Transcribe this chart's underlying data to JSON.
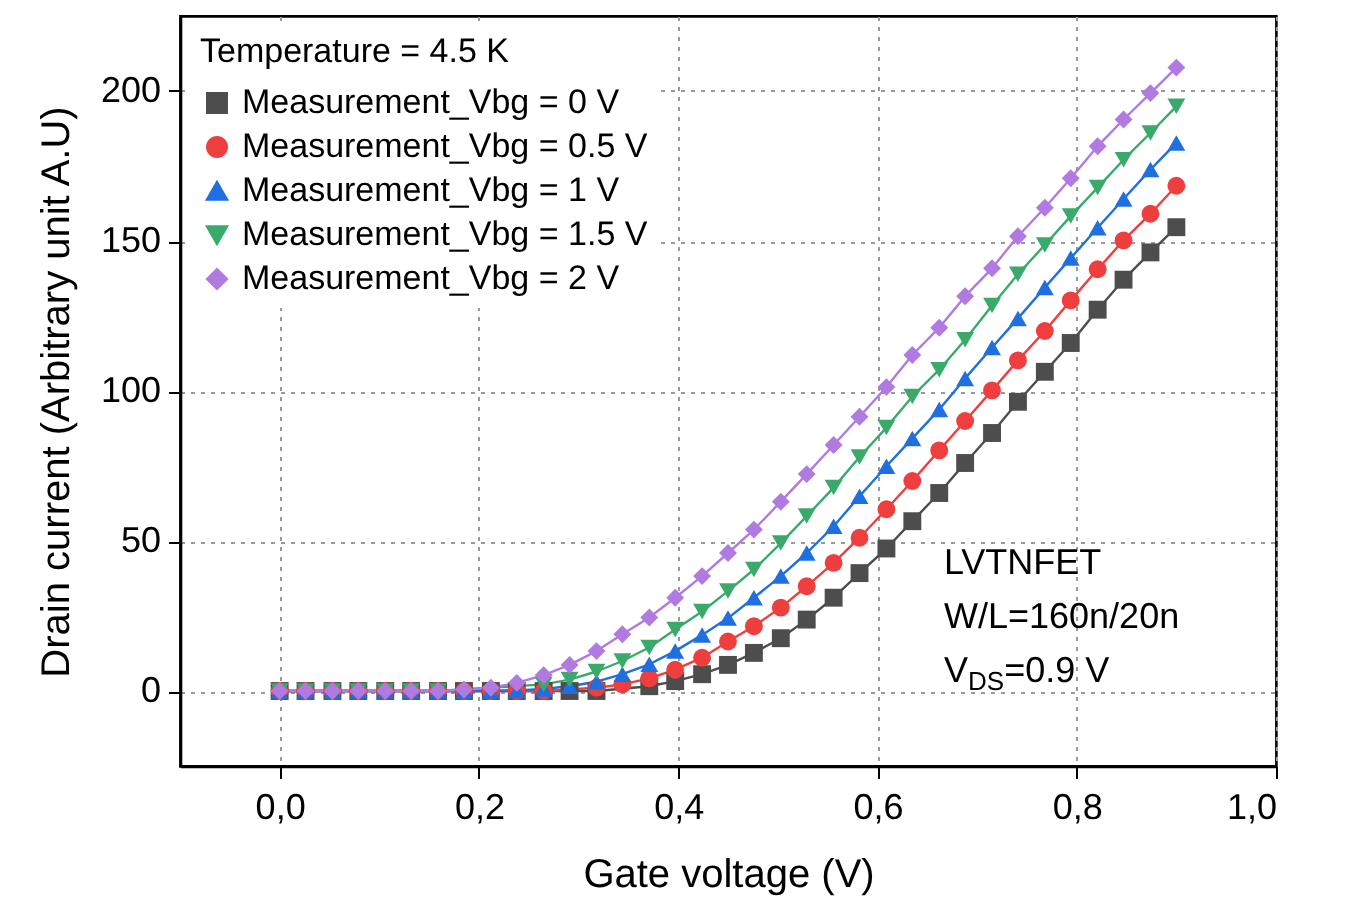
{
  "chart_data": {
    "type": "line",
    "xlabel": "Gate voltage (V)",
    "ylabel": "Drain current (Arbitrary unit A.U)",
    "legend_title": "Temperature = 4.5 K",
    "annotations": [
      "LVTNFET",
      "W/L=160n/20n",
      "V$_{DS}$=0.9 V"
    ],
    "x": [
      0,
      0.026,
      0.053,
      0.079,
      0.106,
      0.132,
      0.159,
      0.185,
      0.212,
      0.238,
      0.265,
      0.291,
      0.318,
      0.344,
      0.371,
      0.397,
      0.424,
      0.45,
      0.476,
      0.503,
      0.529,
      0.556,
      0.582,
      0.609,
      0.635,
      0.662,
      0.688,
      0.715,
      0.741,
      0.768,
      0.794,
      0.821,
      0.847,
      0.874,
      0.9
    ],
    "series": [
      {
        "name": "Measurement_Vbg = 0 V",
        "color": "#4d4d4d",
        "marker": "square",
        "values": [
          0,
          0,
          0,
          0,
          0,
          0,
          0,
          0,
          0,
          0,
          0,
          0,
          0,
          null,
          1.6,
          3.3,
          5.6,
          8.7,
          12.7,
          17.6,
          23.8,
          31.1,
          39.3,
          47.5,
          56.6,
          66,
          76,
          86,
          96.4,
          106.4,
          116,
          127.1,
          137.1,
          146.2,
          154.6
        ]
      },
      {
        "name": "Measurement_Vbg = 0.5 V",
        "color": "#ef3e3e",
        "marker": "circle",
        "values": [
          0,
          0,
          0,
          0,
          0,
          0,
          0,
          0,
          0,
          0,
          0,
          null,
          1.1,
          2.2,
          4.2,
          7.1,
          11.1,
          16.5,
          21.6,
          27.8,
          34.9,
          42.7,
          51.1,
          60.6,
          70,
          80.2,
          90,
          100.2,
          110.2,
          120,
          130.2,
          140.6,
          150.2,
          159.1,
          168.4
        ]
      },
      {
        "name": "Measurement_Vbg = 1 V",
        "color": "#1f6fe0",
        "marker": "triangle",
        "values": [
          0,
          0,
          0,
          0,
          0,
          0,
          0,
          0,
          0,
          0.2,
          0.7,
          1.6,
          3.1,
          5.6,
          8.9,
          13.3,
          18.7,
          24.3,
          31.1,
          38.3,
          46,
          54.9,
          64.9,
          74.9,
          84.2,
          93.8,
          104.2,
          114.5,
          124.2,
          134.5,
          144.3,
          154.4,
          164,
          173.8,
          182.7
        ]
      },
      {
        "name": "Measurement_Vbg = 1.5 V",
        "color": "#3aaa6a",
        "marker": "triangle-down",
        "values": [
          0,
          0,
          0,
          0,
          0,
          0,
          0,
          null,
          null,
          null,
          2.2,
          3.8,
          6.5,
          10,
          14.5,
          20.5,
          26.5,
          33.3,
          40.5,
          49.3,
          58.3,
          67.8,
          78,
          87.8,
          98.2,
          107.1,
          117.1,
          128.5,
          138.9,
          148.7,
          158.3,
          167.8,
          177.1,
          186,
          194.9
        ]
      },
      {
        "name": "Measurement_Vbg = 2 V",
        "color": "#b07ae0",
        "marker": "diamond",
        "values": [
          0,
          0,
          0,
          0,
          0,
          0,
          0,
          0.5,
          1.1,
          2.7,
          5.3,
          8.7,
          13.3,
          18.9,
          24.5,
          31.1,
          38.3,
          46,
          53.8,
          63.1,
          72.3,
          82,
          91.4,
          101.3,
          112,
          121.1,
          131.6,
          140.9,
          151.6,
          161.1,
          170.9,
          181.6,
          190.5,
          199.3,
          207.8
        ]
      }
    ],
    "xlim": [
      -0.1,
      1.0
    ],
    "xticks": [
      {
        "value": 0,
        "label": "0,0"
      },
      {
        "value": 0.2,
        "label": "0,2"
      },
      {
        "value": 0.4,
        "label": "0,4"
      },
      {
        "value": 0.6,
        "label": "0,6"
      },
      {
        "value": 0.8,
        "label": "0,8"
      },
      {
        "value": 1.0,
        "label": "1,0"
      }
    ],
    "ylim": [
      -25,
      225
    ],
    "yticks": [
      0,
      50,
      100,
      150,
      200
    ],
    "grid": true,
    "legend": "top left",
    "line_style": "solid"
  }
}
